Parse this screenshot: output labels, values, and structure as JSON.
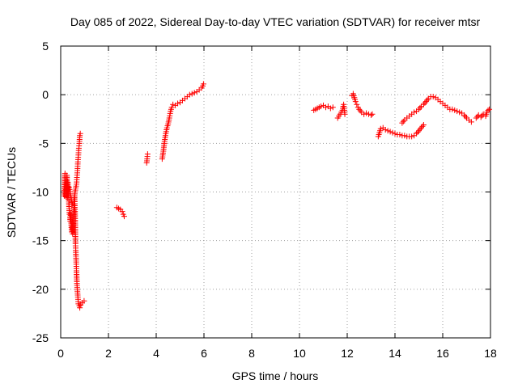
{
  "chart_data": {
    "type": "scatter",
    "title": "Day 085 of 2022, Sidereal Day-to-day VTEC variation (SDTVAR) for receiver mtsr",
    "xlabel": "GPS time / hours",
    "ylabel": "SDTVAR / TECUs",
    "xlim": [
      0,
      18
    ],
    "ylim": [
      -25,
      5
    ],
    "xticks": [
      0,
      2,
      4,
      6,
      8,
      10,
      12,
      14,
      16,
      18
    ],
    "yticks": [
      -25,
      -20,
      -15,
      -10,
      -5,
      0,
      5
    ],
    "grid": true,
    "marker": "+",
    "series": [
      {
        "name": "SDTVAR",
        "color": "#ff0000",
        "segments": [
          [
            [
              0.15,
              -10.4
            ],
            [
              0.18,
              -8.1
            ],
            [
              0.22,
              -10.5
            ],
            [
              0.26,
              -8.3
            ],
            [
              0.28,
              -10.6
            ],
            [
              0.3,
              -9.0
            ],
            [
              0.33,
              -10.2
            ],
            [
              0.35,
              -11.5
            ],
            [
              0.37,
              -12.3
            ],
            [
              0.39,
              -12.6
            ],
            [
              0.4,
              -13.0
            ],
            [
              0.42,
              -12.2
            ],
            [
              0.44,
              -13.4
            ],
            [
              0.46,
              -14.1
            ],
            [
              0.48,
              -13.2
            ],
            [
              0.5,
              -14.3
            ],
            [
              0.52,
              -13.8
            ],
            [
              0.54,
              -12.5
            ],
            [
              0.56,
              -11.4
            ],
            [
              0.58,
              -10.4
            ],
            [
              0.6,
              -12.0
            ],
            [
              0.62,
              -15.3
            ],
            [
              0.63,
              -16.0
            ],
            [
              0.65,
              -17.2
            ],
            [
              0.66,
              -18.1
            ],
            [
              0.68,
              -19.4
            ],
            [
              0.7,
              -20.2
            ],
            [
              0.72,
              -20.8
            ],
            [
              0.74,
              -21.5
            ],
            [
              0.78,
              -21.7
            ],
            [
              0.8,
              -21.9
            ],
            [
              0.84,
              -21.6
            ],
            [
              0.9,
              -21.4
            ],
            [
              0.98,
              -21.2
            ]
          ],
          [
            [
              0.35,
              -9.5
            ],
            [
              0.4,
              -10.2
            ],
            [
              0.45,
              -10.8
            ],
            [
              0.5,
              -11.3
            ],
            [
              0.55,
              -11.0
            ],
            [
              0.6,
              -10.0
            ],
            [
              0.63,
              -9.6
            ],
            [
              0.66,
              -9.2
            ],
            [
              0.68,
              -8.5
            ],
            [
              0.7,
              -7.8
            ],
            [
              0.72,
              -6.9
            ],
            [
              0.74,
              -6.2
            ],
            [
              0.76,
              -5.5
            ],
            [
              0.78,
              -5.0
            ],
            [
              0.8,
              -4.2
            ],
            [
              0.82,
              -4.0
            ]
          ],
          [
            [
              2.35,
              -11.6
            ],
            [
              2.5,
              -11.8
            ],
            [
              2.58,
              -12.0
            ],
            [
              2.62,
              -12.3
            ],
            [
              2.66,
              -12.5
            ]
          ],
          [
            [
              3.6,
              -7.0
            ],
            [
              3.62,
              -6.6
            ],
            [
              3.64,
              -6.1
            ]
          ],
          [
            [
              4.25,
              -6.6
            ],
            [
              4.3,
              -5.8
            ],
            [
              4.35,
              -4.8
            ],
            [
              4.4,
              -4.0
            ],
            [
              4.45,
              -3.4
            ],
            [
              4.5,
              -3.0
            ],
            [
              4.55,
              -2.4
            ],
            [
              4.6,
              -1.7
            ],
            [
              4.65,
              -1.3
            ],
            [
              4.7,
              -1.0
            ],
            [
              4.8,
              -1.1
            ],
            [
              4.9,
              -0.9
            ],
            [
              5.0,
              -0.8
            ],
            [
              5.1,
              -0.6
            ],
            [
              5.2,
              -0.4
            ],
            [
              5.3,
              -0.2
            ],
            [
              5.4,
              0.0
            ],
            [
              5.5,
              0.1
            ],
            [
              5.6,
              0.2
            ],
            [
              5.7,
              0.3
            ],
            [
              5.8,
              0.5
            ],
            [
              5.9,
              0.7
            ],
            [
              5.95,
              0.9
            ],
            [
              5.98,
              1.1
            ]
          ],
          [
            [
              10.6,
              -1.6
            ],
            [
              10.9,
              -1.2
            ],
            [
              11.0,
              -1.1
            ],
            [
              11.1,
              -1.3
            ],
            [
              11.2,
              -1.2
            ],
            [
              11.3,
              -1.4
            ],
            [
              11.4,
              -1.3
            ]
          ],
          [
            [
              11.6,
              -2.4
            ],
            [
              11.7,
              -2.0
            ],
            [
              11.8,
              -1.6
            ],
            [
              11.85,
              -1.0
            ],
            [
              11.9,
              -2.0
            ]
          ],
          [
            [
              12.2,
              -0.1
            ],
            [
              12.25,
              0.1
            ],
            [
              12.3,
              -0.3
            ],
            [
              12.35,
              -0.7
            ],
            [
              12.4,
              -1.0
            ],
            [
              12.45,
              -1.3
            ],
            [
              12.5,
              -1.5
            ],
            [
              12.6,
              -1.8
            ],
            [
              12.7,
              -2.0
            ],
            [
              12.8,
              -1.9
            ],
            [
              12.9,
              -2.0
            ],
            [
              13.0,
              -2.1
            ],
            [
              13.05,
              -2.0
            ]
          ],
          [
            [
              13.3,
              -4.3
            ],
            [
              13.35,
              -3.9
            ],
            [
              13.4,
              -3.5
            ],
            [
              13.5,
              -3.4
            ],
            [
              13.6,
              -3.6
            ],
            [
              13.7,
              -3.7
            ],
            [
              13.8,
              -3.8
            ],
            [
              13.9,
              -3.9
            ],
            [
              14.0,
              -4.0
            ],
            [
              14.1,
              -4.1
            ],
            [
              14.2,
              -4.1
            ],
            [
              14.3,
              -4.2
            ],
            [
              14.4,
              -4.2
            ],
            [
              14.5,
              -4.3
            ],
            [
              14.6,
              -4.3
            ],
            [
              14.7,
              -4.3
            ],
            [
              14.8,
              -4.2
            ],
            [
              14.9,
              -4.0
            ],
            [
              15.0,
              -3.7
            ],
            [
              15.1,
              -3.4
            ],
            [
              15.2,
              -3.1
            ]
          ],
          [
            [
              14.3,
              -2.9
            ],
            [
              14.4,
              -2.6
            ],
            [
              14.5,
              -2.4
            ],
            [
              14.6,
              -2.2
            ],
            [
              14.7,
              -2.0
            ],
            [
              14.8,
              -1.8
            ],
            [
              14.9,
              -1.7
            ],
            [
              15.0,
              -1.5
            ],
            [
              15.1,
              -1.2
            ],
            [
              15.2,
              -1.0
            ],
            [
              15.3,
              -0.7
            ],
            [
              15.4,
              -0.4
            ],
            [
              15.5,
              -0.2
            ],
            [
              15.6,
              -0.2
            ],
            [
              15.7,
              -0.3
            ],
            [
              15.8,
              -0.5
            ],
            [
              15.9,
              -0.7
            ],
            [
              16.0,
              -0.9
            ],
            [
              16.1,
              -1.1
            ],
            [
              16.2,
              -1.3
            ],
            [
              16.3,
              -1.5
            ],
            [
              16.4,
              -1.5
            ],
            [
              16.5,
              -1.6
            ],
            [
              16.6,
              -1.7
            ],
            [
              16.7,
              -1.8
            ],
            [
              16.8,
              -1.9
            ],
            [
              16.9,
              -2.1
            ],
            [
              17.0,
              -2.4
            ],
            [
              17.1,
              -2.6
            ],
            [
              17.2,
              -2.8
            ]
          ],
          [
            [
              17.4,
              -2.4
            ],
            [
              17.5,
              -2.1
            ],
            [
              17.6,
              -2.3
            ],
            [
              17.7,
              -2.0
            ],
            [
              17.8,
              -2.2
            ],
            [
              17.85,
              -1.8
            ],
            [
              17.9,
              -1.6
            ],
            [
              17.95,
              -1.5
            ]
          ]
        ]
      }
    ]
  }
}
